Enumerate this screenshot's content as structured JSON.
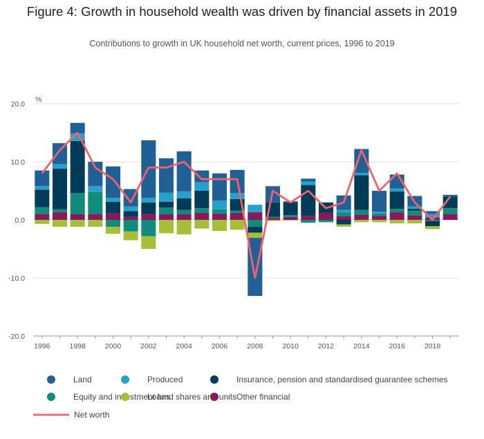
{
  "header": {
    "title": "Figure 4: Growth in household wealth was driven by financial assets in 2019",
    "subtitle": "Contributions to growth in UK household net worth, current prices, 1996 to 2019"
  },
  "colors": {
    "land": "#206095",
    "produced": "#27a0cc",
    "insurance": "#003c57",
    "equity": "#118c7b",
    "loans": "#a8bd3a",
    "other_financial": "#871a5b",
    "net_worth": "#f66068"
  },
  "chart_data": {
    "type": "bar",
    "stacked": true,
    "ylabel": "%",
    "ylim": [
      -20,
      20
    ],
    "yticks": [
      "20.0",
      "10.0",
      "0.0",
      "-10.0",
      "-20.0"
    ],
    "grid": true,
    "legend_position": "bottom",
    "x": [
      1996,
      1997,
      1998,
      1999,
      2000,
      2001,
      2002,
      2003,
      2004,
      2005,
      2006,
      2007,
      2008,
      2009,
      2010,
      2011,
      2012,
      2013,
      2014,
      2015,
      2016,
      2017,
      2018,
      2019
    ],
    "xticks": [
      "1996",
      "1998",
      "2000",
      "2002",
      "2004",
      "2006",
      "2008",
      "2010",
      "2012",
      "2014",
      "2016",
      "2018"
    ],
    "series": [
      {
        "key": "other_financial",
        "name": "Other financial",
        "values": [
          1.0,
          1.3,
          1.0,
          1.0,
          1.1,
          0.5,
          1.0,
          1.0,
          1.0,
          1.2,
          1.1,
          1.2,
          1.3,
          0.3,
          0.5,
          0.7,
          1.2,
          0.6,
          0.9,
          0.7,
          1.3,
          0.8,
          0.4,
          1.0
        ]
      },
      {
        "key": "equity",
        "name": "Equity and investment fund shares and units",
        "values": [
          1.2,
          0.5,
          3.6,
          3.8,
          -1.2,
          -2.0,
          -2.8,
          1.1,
          0.7,
          0.8,
          0.7,
          0.4,
          -1.2,
          0.2,
          0.3,
          -0.5,
          -0.4,
          0.7,
          0.8,
          0.4,
          0.6,
          0.8,
          -0.2,
          1.0
        ]
      },
      {
        "key": "insurance",
        "name": "Insurance, pension and standardised guarantee schemes",
        "values": [
          3.0,
          7.0,
          9.0,
          0.0,
          2.0,
          1.0,
          2.0,
          1.0,
          2.0,
          3.0,
          0.0,
          2.0,
          -1.0,
          2.5,
          2.2,
          5.3,
          1.8,
          -0.8,
          6.0,
          0.0,
          3.0,
          0.3,
          -0.9,
          2.0
        ]
      },
      {
        "key": "produced",
        "name": "Produced",
        "values": [
          0.6,
          0.8,
          1.3,
          1.0,
          0.7,
          0.8,
          0.8,
          1.6,
          1.2,
          1.5,
          1.5,
          1.0,
          1.3,
          0.0,
          0.0,
          0.6,
          0.0,
          0.4,
          0.4,
          0.3,
          0.5,
          0.4,
          0.6,
          0.0
        ]
      },
      {
        "key": "loans",
        "name": "Loans",
        "values": [
          -0.7,
          -1.2,
          -1.2,
          -1.2,
          -1.2,
          -1.5,
          -2.2,
          -2.3,
          -2.5,
          -1.5,
          -1.9,
          -1.7,
          -0.9,
          -0.2,
          -0.1,
          0.0,
          0.0,
          -0.4,
          -0.4,
          -0.4,
          -0.6,
          -0.6,
          -0.5,
          0.0
        ]
      },
      {
        "key": "land",
        "name": "Land",
        "values": [
          2.7,
          3.6,
          1.8,
          4.2,
          5.4,
          3.0,
          9.9,
          5.9,
          6.9,
          2.0,
          4.7,
          4.0,
          -10.0,
          2.8,
          0.2,
          0.5,
          0.0,
          2.5,
          4.1,
          3.6,
          2.4,
          1.8,
          0.5,
          0.3
        ]
      }
    ],
    "line": {
      "key": "net_worth",
      "name": "Net worth",
      "values": [
        8.0,
        12.0,
        15.0,
        9.0,
        7.0,
        3.0,
        9.0,
        9.0,
        10.0,
        7.0,
        7.0,
        7.0,
        -10.0,
        5.0,
        3.0,
        5.0,
        2.0,
        3.0,
        12.0,
        5.0,
        8.0,
        3.0,
        0.0,
        4.0
      ]
    }
  },
  "legend": {
    "items": [
      {
        "label": "Land",
        "key": "land",
        "shape": "circle",
        "col": 0,
        "row": 0
      },
      {
        "label": "Produced",
        "key": "produced",
        "shape": "circle",
        "col": 1,
        "row": 0
      },
      {
        "label": "Insurance, pension and standardised guarantee schemes",
        "key": "insurance",
        "shape": "circle",
        "col": 2,
        "row": 0
      },
      {
        "label": "Equity and investment fund shares and units",
        "key": "equity",
        "shape": "circle",
        "col": 0,
        "row": 1
      },
      {
        "label": "Loans",
        "key": "loans",
        "shape": "circle",
        "col": 1,
        "row": 1
      },
      {
        "label": "Other financial",
        "key": "other_financial",
        "shape": "circle",
        "col": 2,
        "row": 1
      },
      {
        "label": "Net worth",
        "key": "net_worth",
        "shape": "line",
        "col": 0,
        "row": 2
      }
    ]
  }
}
